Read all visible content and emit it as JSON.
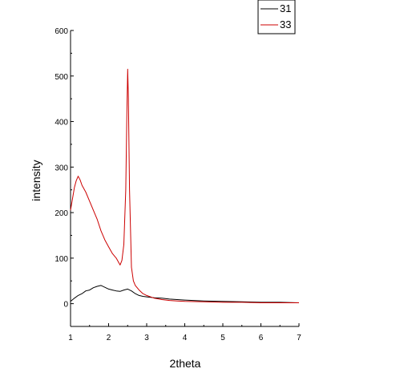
{
  "chart_data": {
    "type": "line",
    "xlabel": "2theta",
    "ylabel": "intensity",
    "xlim": [
      1,
      7
    ],
    "ylim": [
      -50,
      600
    ],
    "x_ticks": [
      1,
      2,
      3,
      4,
      5,
      6,
      7
    ],
    "y_ticks": [
      0,
      100,
      200,
      300,
      400,
      500,
      600
    ],
    "grid": false,
    "legend_position": "top-right",
    "series": [
      {
        "name": "31",
        "color": "#000000",
        "x": [
          1.0,
          1.1,
          1.2,
          1.3,
          1.4,
          1.5,
          1.6,
          1.7,
          1.8,
          1.9,
          2.0,
          2.1,
          2.2,
          2.3,
          2.4,
          2.5,
          2.6,
          2.7,
          2.8,
          2.9,
          3.0,
          3.2,
          3.4,
          3.6,
          3.8,
          4.0,
          4.5,
          5.0,
          5.5,
          6.0,
          6.5,
          7.0
        ],
        "values": [
          5,
          12,
          18,
          22,
          28,
          30,
          35,
          38,
          40,
          36,
          32,
          30,
          28,
          27,
          30,
          32,
          28,
          22,
          18,
          16,
          15,
          13,
          12,
          10,
          9,
          8,
          6,
          5,
          4,
          3,
          3,
          2
        ]
      },
      {
        "name": "33",
        "color": "#cc0000",
        "x": [
          1.0,
          1.05,
          1.1,
          1.15,
          1.2,
          1.25,
          1.3,
          1.4,
          1.5,
          1.6,
          1.7,
          1.8,
          1.9,
          2.0,
          2.1,
          2.2,
          2.3,
          2.35,
          2.4,
          2.45,
          2.48,
          2.5,
          2.52,
          2.55,
          2.6,
          2.65,
          2.7,
          2.8,
          2.9,
          3.0,
          3.2,
          3.4,
          3.6,
          3.8,
          4.0,
          4.5,
          5.0,
          5.5,
          6.0,
          6.5,
          7.0
        ],
        "values": [
          205,
          230,
          255,
          270,
          280,
          272,
          260,
          245,
          225,
          205,
          185,
          160,
          140,
          125,
          110,
          100,
          85,
          95,
          130,
          250,
          420,
          515,
          450,
          250,
          80,
          50,
          40,
          30,
          22,
          18,
          12,
          9,
          7,
          6,
          5,
          4,
          3,
          3,
          2,
          2,
          2
        ]
      }
    ]
  }
}
